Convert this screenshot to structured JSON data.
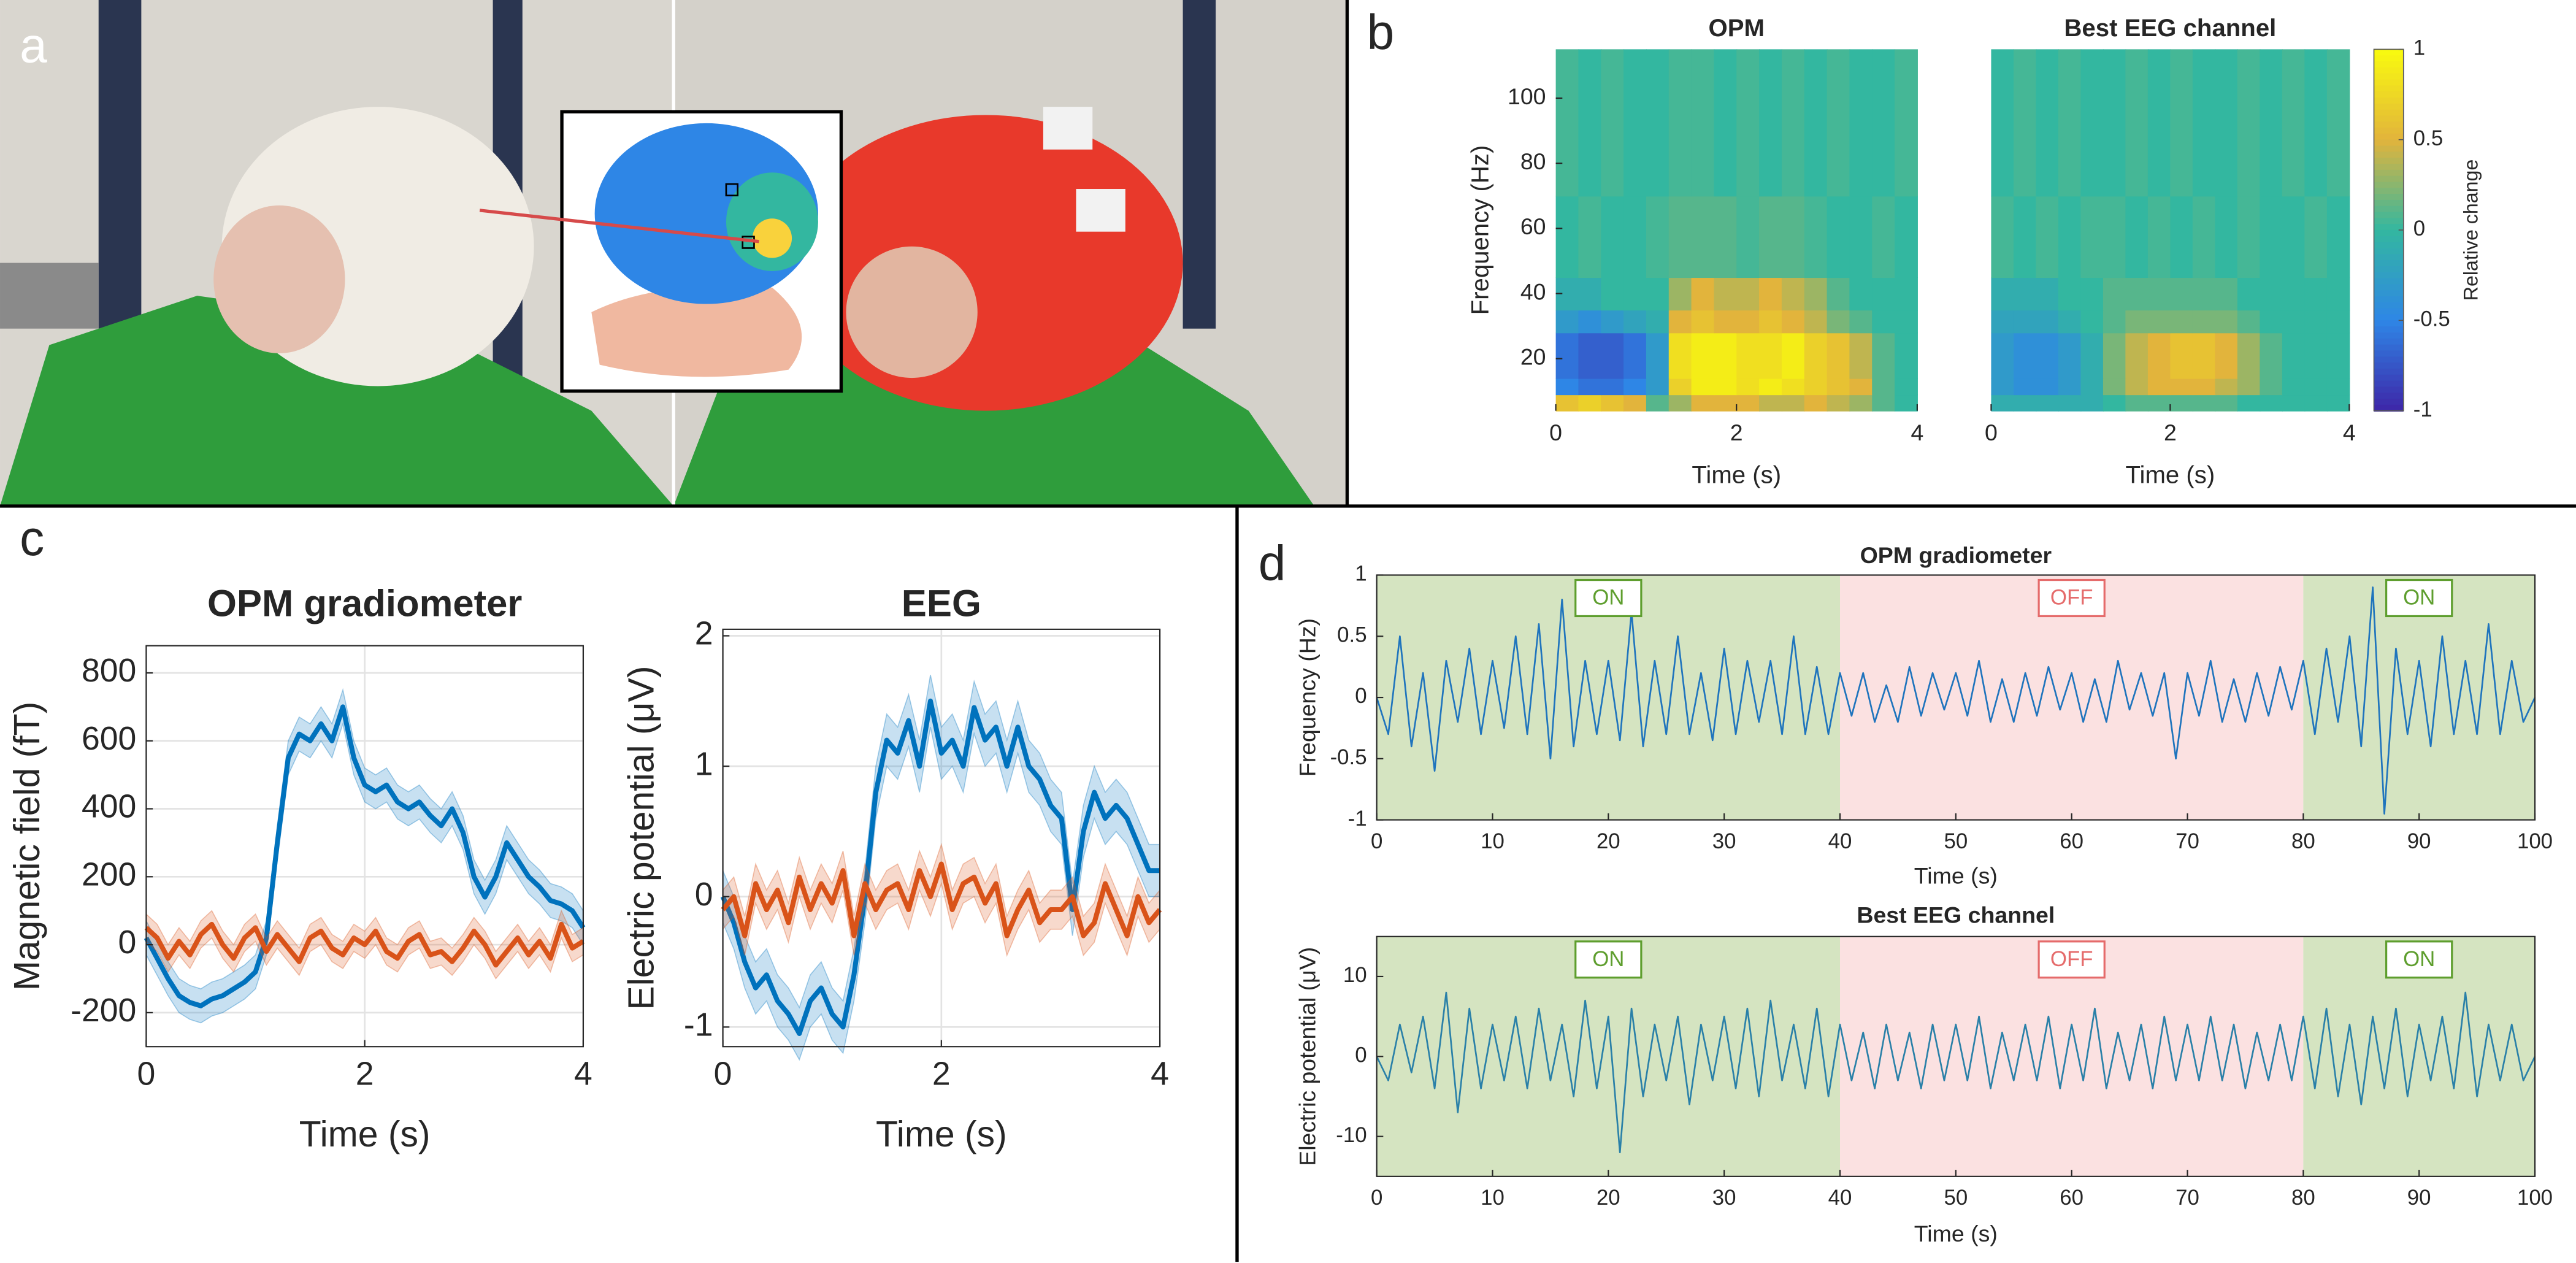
{
  "figure_labels": [
    "a",
    "b",
    "c",
    "d"
  ],
  "chart_data": [
    {
      "type": "heatmap",
      "title": "OPM",
      "xlabel": "Time (s)",
      "ylabel": "Frequency (Hz)",
      "xlim": [
        0,
        4
      ],
      "xticks": [
        0,
        2,
        4
      ],
      "ylim": [
        4,
        115
      ],
      "yticks": [
        20,
        40,
        60,
        80,
        100
      ],
      "x_edges": [
        0,
        0.25,
        0.5,
        0.75,
        1,
        1.25,
        1.5,
        1.75,
        2,
        2.25,
        2.5,
        2.75,
        3,
        3.25,
        3.5,
        3.75,
        4
      ],
      "y_edges": [
        4,
        9,
        14,
        28,
        35,
        45,
        70,
        115
      ],
      "clim": [
        -1,
        1
      ],
      "colormap": [
        "#3e26a8",
        "#2e86e6",
        "#33b7a0",
        "#e2b43c",
        "#f9fb0e"
      ],
      "z": [
        [
          0.6,
          0.7,
          0.6,
          0.5,
          0.1,
          0.3,
          0.5,
          0.5,
          0.5,
          0.4,
          0.4,
          0.5,
          0.4,
          0.3,
          0.1,
          0.0
        ],
        [
          -0.5,
          -0.6,
          -0.6,
          -0.5,
          -0.3,
          0.7,
          0.9,
          0.9,
          0.8,
          0.9,
          0.8,
          0.7,
          0.6,
          0.5,
          0.1,
          0.0
        ],
        [
          -0.6,
          -0.7,
          -0.7,
          -0.6,
          -0.3,
          0.8,
          0.9,
          0.9,
          0.8,
          0.8,
          0.9,
          0.7,
          0.6,
          0.4,
          0.1,
          0.0
        ],
        [
          -0.3,
          -0.4,
          -0.3,
          -0.2,
          -0.1,
          0.5,
          0.6,
          0.5,
          0.5,
          0.6,
          0.5,
          0.4,
          0.2,
          0.1,
          0.0,
          0.0
        ],
        [
          -0.1,
          -0.1,
          0.0,
          0.0,
          0.0,
          0.3,
          0.5,
          0.4,
          0.4,
          0.5,
          0.4,
          0.3,
          0.1,
          0.0,
          0.0,
          0.0
        ],
        [
          0.0,
          0.05,
          0.0,
          0.0,
          0.05,
          0.1,
          0.1,
          0.1,
          0.05,
          0.1,
          0.1,
          0.05,
          0.0,
          0.0,
          0.05,
          0.0
        ],
        [
          0.05,
          0.0,
          0.05,
          0.0,
          0.0,
          0.05,
          0.05,
          0.0,
          0.05,
          0.0,
          0.05,
          0.0,
          0.05,
          0.0,
          0.0,
          0.05
        ]
      ]
    },
    {
      "type": "heatmap",
      "title": "Best EEG channel",
      "xlabel": "Time (s)",
      "xlim": [
        0,
        4
      ],
      "xticks": [
        0,
        2,
        4
      ],
      "ylim": [
        4,
        115
      ],
      "x_edges": [
        0,
        0.25,
        0.5,
        0.75,
        1,
        1.25,
        1.5,
        1.75,
        2,
        2.25,
        2.5,
        2.75,
        3,
        3.25,
        3.5,
        3.75,
        4
      ],
      "y_edges": [
        4,
        9,
        14,
        28,
        35,
        45,
        70,
        115
      ],
      "clim": [
        -1,
        1
      ],
      "colormap": [
        "#3e26a8",
        "#2e86e6",
        "#33b7a0",
        "#e2b43c",
        "#f9fb0e"
      ],
      "colorbar": {
        "label": "Relative change",
        "ticks": [
          -1,
          -0.5,
          0,
          0.5,
          1
        ]
      },
      "z": [
        [
          -0.1,
          -0.1,
          -0.1,
          -0.1,
          -0.1,
          0.0,
          0.1,
          0.1,
          0.1,
          0.1,
          0.1,
          0.0,
          0.0,
          0.0,
          0.0,
          0.0
        ],
        [
          -0.3,
          -0.4,
          -0.4,
          -0.3,
          -0.1,
          0.2,
          0.4,
          0.5,
          0.5,
          0.5,
          0.4,
          0.3,
          0.1,
          0.0,
          0.0,
          0.0
        ],
        [
          -0.3,
          -0.4,
          -0.4,
          -0.3,
          -0.1,
          0.2,
          0.4,
          0.5,
          0.6,
          0.6,
          0.5,
          0.3,
          0.1,
          0.0,
          0.0,
          0.0
        ],
        [
          -0.2,
          -0.2,
          -0.2,
          -0.1,
          0.0,
          0.1,
          0.2,
          0.2,
          0.2,
          0.2,
          0.2,
          0.1,
          0.0,
          0.0,
          0.0,
          0.0
        ],
        [
          -0.1,
          -0.1,
          -0.1,
          0.0,
          0.0,
          0.1,
          0.1,
          0.1,
          0.1,
          0.1,
          0.1,
          0.0,
          0.0,
          0.0,
          0.0,
          0.0
        ],
        [
          0.05,
          0.0,
          0.05,
          0.0,
          0.05,
          0.05,
          0.0,
          0.05,
          0.0,
          0.05,
          0.0,
          0.05,
          0.0,
          0.0,
          0.05,
          0.0
        ],
        [
          0.0,
          0.05,
          0.0,
          0.05,
          0.0,
          0.0,
          0.05,
          0.0,
          0.05,
          0.0,
          0.0,
          0.05,
          0.0,
          0.05,
          0.0,
          0.05
        ]
      ]
    },
    {
      "type": "line",
      "title": "OPM gradiometer",
      "xlabel": "Time (s)",
      "ylabel": "Magnetic field (fT)",
      "xlim": [
        0,
        4
      ],
      "xticks": [
        0,
        2,
        4
      ],
      "ylim": [
        -300,
        880
      ],
      "yticks": [
        -200,
        0,
        200,
        400,
        600,
        800
      ],
      "grid": true,
      "x": [
        0,
        0.1,
        0.2,
        0.3,
        0.4,
        0.5,
        0.6,
        0.7,
        0.8,
        0.9,
        1,
        1.1,
        1.2,
        1.3,
        1.4,
        1.5,
        1.6,
        1.7,
        1.8,
        1.9,
        2,
        2.1,
        2.2,
        2.3,
        2.4,
        2.5,
        2.6,
        2.7,
        2.8,
        2.9,
        3,
        3.1,
        3.2,
        3.3,
        3.4,
        3.5,
        3.6,
        3.7,
        3.8,
        3.9,
        4
      ],
      "series": [
        {
          "color": "#0072bd",
          "error": 50,
          "values": [
            20,
            -40,
            -100,
            -150,
            -170,
            -180,
            -160,
            -150,
            -130,
            -110,
            -80,
            20,
            300,
            550,
            620,
            600,
            650,
            600,
            700,
            550,
            470,
            450,
            470,
            420,
            400,
            420,
            380,
            350,
            400,
            330,
            200,
            140,
            200,
            300,
            250,
            200,
            170,
            130,
            120,
            100,
            50
          ]
        },
        {
          "color": "#d95319",
          "error": 40,
          "values": [
            50,
            20,
            -40,
            10,
            -30,
            30,
            60,
            0,
            -40,
            20,
            50,
            -20,
            30,
            -10,
            -50,
            20,
            40,
            -10,
            -30,
            20,
            0,
            40,
            -20,
            -40,
            10,
            30,
            -30,
            -20,
            -50,
            -10,
            40,
            0,
            -60,
            -20,
            20,
            -30,
            10,
            -40,
            60,
            -10,
            10
          ]
        }
      ]
    },
    {
      "type": "line",
      "title": "EEG",
      "xlabel": "Time (s)",
      "ylabel": "Electric potential (μV)",
      "xlim": [
        0,
        4
      ],
      "xticks": [
        0,
        2,
        4
      ],
      "ylim": [
        -1.15,
        2.05
      ],
      "yticks": [
        -1,
        0,
        1,
        2
      ],
      "grid": true,
      "x": [
        0,
        0.1,
        0.2,
        0.3,
        0.4,
        0.5,
        0.6,
        0.7,
        0.8,
        0.9,
        1,
        1.1,
        1.2,
        1.3,
        1.4,
        1.5,
        1.6,
        1.7,
        1.8,
        1.9,
        2,
        2.1,
        2.2,
        2.3,
        2.4,
        2.5,
        2.6,
        2.7,
        2.8,
        2.9,
        3,
        3.1,
        3.2,
        3.3,
        3.4,
        3.5,
        3.6,
        3.7,
        3.8,
        3.9,
        4
      ],
      "series": [
        {
          "color": "#0072bd",
          "error": 0.2,
          "values": [
            0,
            -0.2,
            -0.5,
            -0.7,
            -0.6,
            -0.8,
            -0.9,
            -1.05,
            -0.8,
            -0.7,
            -0.9,
            -1.0,
            -0.6,
            0.0,
            0.8,
            1.2,
            1.1,
            1.35,
            1.0,
            1.5,
            1.1,
            1.2,
            1.0,
            1.45,
            1.2,
            1.3,
            1.0,
            1.3,
            1.0,
            0.9,
            0.7,
            0.6,
            -0.1,
            0.5,
            0.8,
            0.6,
            0.7,
            0.6,
            0.4,
            0.2,
            0.2
          ]
        },
        {
          "color": "#d95319",
          "error": 0.15,
          "values": [
            -0.1,
            0,
            -0.3,
            0.1,
            -0.1,
            0.05,
            -0.2,
            0.15,
            -0.1,
            0.1,
            -0.05,
            0.2,
            -0.3,
            0.1,
            -0.1,
            0.05,
            0.1,
            -0.1,
            0.2,
            0,
            0.25,
            -0.1,
            0.1,
            0.15,
            -0.05,
            0.1,
            -0.3,
            -0.1,
            0.05,
            -0.2,
            -0.1,
            -0.1,
            0,
            -0.3,
            -0.2,
            0.1,
            -0.1,
            -0.3,
            0,
            -0.2,
            -0.1
          ]
        }
      ]
    },
    {
      "type": "line",
      "title": "OPM gradiometer",
      "xlabel": "Time (s)",
      "ylabel": "Frequency (Hz)",
      "xlim": [
        0,
        100
      ],
      "xticks": [
        0,
        10,
        20,
        30,
        40,
        50,
        60,
        70,
        80,
        90,
        100
      ],
      "ylim": [
        -1,
        1
      ],
      "yticks": [
        -1,
        -0.5,
        0,
        0.5,
        1
      ],
      "regions": [
        {
          "start": 0,
          "end": 40,
          "label": "ON",
          "color": "#d5e4c1",
          "label_color": "#5e9e2e"
        },
        {
          "start": 40,
          "end": 80,
          "label": "OFF",
          "color": "#fbe1e1",
          "label_color": "#e56b6b"
        },
        {
          "start": 80,
          "end": 100,
          "label": "ON",
          "color": "#d5e4c1",
          "label_color": "#5e9e2e"
        }
      ],
      "x": [
        0,
        1,
        2,
        3,
        4,
        5,
        6,
        7,
        8,
        9,
        10,
        11,
        12,
        13,
        14,
        15,
        16,
        17,
        18,
        19,
        20,
        21,
        22,
        23,
        24,
        25,
        26,
        27,
        28,
        29,
        30,
        31,
        32,
        33,
        34,
        35,
        36,
        37,
        38,
        39,
        40,
        41,
        42,
        43,
        44,
        45,
        46,
        47,
        48,
        49,
        50,
        51,
        52,
        53,
        54,
        55,
        56,
        57,
        58,
        59,
        60,
        61,
        62,
        63,
        64,
        65,
        66,
        67,
        68,
        69,
        70,
        71,
        72,
        73,
        74,
        75,
        76,
        77,
        78,
        79,
        80,
        81,
        82,
        83,
        84,
        85,
        86,
        87,
        88,
        89,
        90,
        91,
        92,
        93,
        94,
        95,
        96,
        97,
        98,
        99,
        100
      ],
      "series": [
        {
          "color": "#1f74bd",
          "values": [
            0,
            -0.3,
            0.5,
            -0.4,
            0.2,
            -0.6,
            0.3,
            -0.2,
            0.4,
            -0.3,
            0.3,
            -0.25,
            0.5,
            -0.3,
            0.6,
            -0.5,
            0.8,
            -0.4,
            0.3,
            -0.3,
            0.3,
            -0.35,
            0.7,
            -0.4,
            0.3,
            -0.3,
            0.5,
            -0.3,
            0.2,
            -0.35,
            0.4,
            -0.3,
            0.3,
            -0.2,
            0.3,
            -0.3,
            0.5,
            -0.3,
            0.25,
            -0.3,
            0.2,
            -0.15,
            0.2,
            -0.2,
            0.1,
            -0.2,
            0.25,
            -0.15,
            0.2,
            -0.1,
            0.2,
            -0.15,
            0.3,
            -0.2,
            0.15,
            -0.2,
            0.2,
            -0.15,
            0.25,
            -0.1,
            0.2,
            -0.2,
            0.15,
            -0.2,
            0.3,
            -0.1,
            0.2,
            -0.15,
            0.2,
            -0.5,
            0.2,
            -0.15,
            0.3,
            -0.2,
            0.15,
            -0.2,
            0.2,
            -0.15,
            0.25,
            -0.1,
            0.3,
            -0.3,
            0.4,
            -0.2,
            0.5,
            -0.4,
            0.9,
            -0.95,
            0.4,
            -0.3,
            0.3,
            -0.4,
            0.5,
            -0.3,
            0.3,
            -0.3,
            0.6,
            -0.3,
            0.3,
            -0.2,
            0
          ]
        }
      ]
    },
    {
      "type": "line",
      "title": "Best EEG channel",
      "xlabel": "Time (s)",
      "ylabel": "Electric potential (μV)",
      "xlim": [
        0,
        100
      ],
      "xticks": [
        0,
        10,
        20,
        30,
        40,
        50,
        60,
        70,
        80,
        90,
        100
      ],
      "ylim": [
        -15,
        15
      ],
      "yticks": [
        -10,
        0,
        10
      ],
      "regions": [
        {
          "start": 0,
          "end": 40,
          "label": "ON",
          "color": "#d5e4c1",
          "label_color": "#5e9e2e"
        },
        {
          "start": 40,
          "end": 80,
          "label": "OFF",
          "color": "#fbe1e1",
          "label_color": "#e56b6b"
        },
        {
          "start": 80,
          "end": 100,
          "label": "ON",
          "color": "#d5e4c1",
          "label_color": "#5e9e2e"
        }
      ],
      "x": [
        0,
        1,
        2,
        3,
        4,
        5,
        6,
        7,
        8,
        9,
        10,
        11,
        12,
        13,
        14,
        15,
        16,
        17,
        18,
        19,
        20,
        21,
        22,
        23,
        24,
        25,
        26,
        27,
        28,
        29,
        30,
        31,
        32,
        33,
        34,
        35,
        36,
        37,
        38,
        39,
        40,
        41,
        42,
        43,
        44,
        45,
        46,
        47,
        48,
        49,
        50,
        51,
        52,
        53,
        54,
        55,
        56,
        57,
        58,
        59,
        60,
        61,
        62,
        63,
        64,
        65,
        66,
        67,
        68,
        69,
        70,
        71,
        72,
        73,
        74,
        75,
        76,
        77,
        78,
        79,
        80,
        81,
        82,
        83,
        84,
        85,
        86,
        87,
        88,
        89,
        90,
        91,
        92,
        93,
        94,
        95,
        96,
        97,
        98,
        99,
        100
      ],
      "series": [
        {
          "color": "#2a80a8",
          "values": [
            0,
            -3,
            4,
            -2,
            5,
            -4,
            8,
            -7,
            6,
            -4,
            4,
            -3,
            5,
            -4,
            6,
            -3,
            4,
            -5,
            7,
            -4,
            5,
            -12,
            6,
            -5,
            4,
            -3,
            5,
            -6,
            4,
            -3,
            5,
            -4,
            6,
            -5,
            7,
            -3,
            4,
            -4,
            6,
            -5,
            4,
            -3,
            3,
            -4,
            4,
            -3,
            3,
            -4,
            4,
            -3,
            4,
            -3,
            5,
            -4,
            3,
            -3,
            4,
            -3,
            5,
            -4,
            4,
            -3,
            6,
            -4,
            3,
            -3,
            4,
            -4,
            5,
            -3,
            4,
            -3,
            5,
            -3,
            4,
            -4,
            3,
            -3,
            4,
            -3,
            5,
            -4,
            6,
            -5,
            4,
            -6,
            5,
            -4,
            6,
            -5,
            4,
            -3,
            5,
            -4,
            8,
            -5,
            4,
            -3,
            4,
            -3,
            0
          ]
        }
      ]
    }
  ]
}
